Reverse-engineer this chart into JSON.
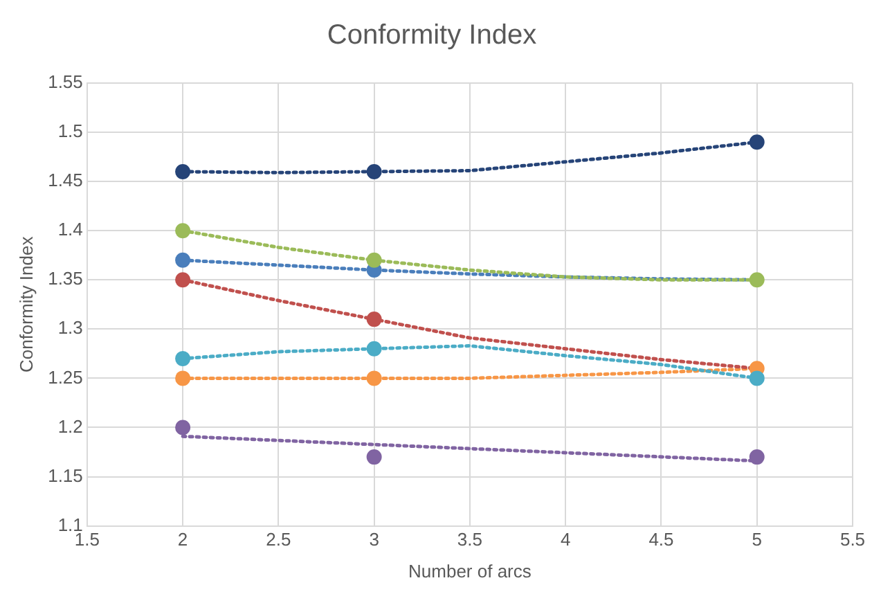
{
  "chart_data": {
    "type": "scatter",
    "title": "Conformity Index",
    "xlabel": "Number of arcs",
    "ylabel": "Conformity Index",
    "xlim": [
      1.5,
      5.5
    ],
    "xticks": [
      1.5,
      2,
      2.5,
      3,
      3.5,
      4,
      4.5,
      5,
      5.5
    ],
    "ylim": [
      1.1,
      1.55
    ],
    "yticks": [
      1.1,
      1.15,
      1.2,
      1.25,
      1.3,
      1.35,
      1.4,
      1.45,
      1.5,
      1.55
    ],
    "grid": true,
    "legend": false,
    "marker": "circle",
    "series": [
      {
        "type": "line",
        "line_style": "dotted",
        "marker": "none",
        "color": "#264478",
        "x": [
          2,
          2.5,
          3,
          3.5,
          4,
          4.5,
          5
        ],
        "values": [
          1.46,
          1.459,
          1.46,
          1.461,
          1.47,
          1.479,
          1.49
        ]
      },
      {
        "type": "line",
        "line_style": "dotted",
        "marker": "none",
        "color": "#9bbb59",
        "x": [
          2,
          2.5,
          3,
          3.5,
          4,
          4.5,
          5
        ],
        "values": [
          1.4,
          1.383,
          1.37,
          1.36,
          1.353,
          1.35,
          1.35
        ]
      },
      {
        "type": "line",
        "line_style": "dotted",
        "marker": "none",
        "color": "#4a7ebb",
        "x": [
          2,
          2.5,
          3,
          3.5,
          4,
          4.5,
          5
        ],
        "values": [
          1.37,
          1.365,
          1.36,
          1.356,
          1.353,
          1.351,
          1.35
        ]
      },
      {
        "type": "line",
        "line_style": "dotted",
        "marker": "none",
        "color": "#c0504d",
        "x": [
          2,
          2.5,
          3,
          3.5,
          4,
          4.5,
          5
        ],
        "values": [
          1.35,
          1.329,
          1.31,
          1.291,
          1.28,
          1.269,
          1.26
        ]
      },
      {
        "type": "line",
        "line_style": "dotted",
        "marker": "none",
        "color": "#4bacc6",
        "x": [
          2,
          2.5,
          3,
          3.5,
          4,
          4.5,
          5
        ],
        "values": [
          1.27,
          1.277,
          1.28,
          1.283,
          1.273,
          1.264,
          1.25
        ]
      },
      {
        "type": "line",
        "line_style": "dotted",
        "marker": "none",
        "color": "#f79646",
        "x": [
          2,
          2.5,
          3,
          3.5,
          4,
          4.5,
          5
        ],
        "values": [
          1.25,
          1.25,
          1.25,
          1.25,
          1.253,
          1.256,
          1.26
        ]
      },
      {
        "type": "line",
        "line_style": "dotted",
        "marker": "none",
        "color": "#8064a2",
        "x": [
          2,
          5
        ],
        "values": [
          1.191,
          1.166
        ]
      },
      {
        "color": "#264478",
        "x": [
          2,
          3,
          5
        ],
        "values": [
          1.46,
          1.46,
          1.49
        ]
      },
      {
        "color": "#9bbb59",
        "x": [
          2,
          3,
          5
        ],
        "values": [
          1.4,
          1.37,
          1.35
        ]
      },
      {
        "color": "#4a7ebb",
        "x": [
          2,
          3
        ],
        "values": [
          1.37,
          1.36
        ]
      },
      {
        "color": "#c0504d",
        "x": [
          2,
          3
        ],
        "values": [
          1.35,
          1.31
        ]
      },
      {
        "color": "#4bacc6",
        "x": [
          2,
          3,
          5
        ],
        "values": [
          1.27,
          1.28,
          1.25
        ]
      },
      {
        "color": "#f79646",
        "x": [
          2,
          3,
          5
        ],
        "values": [
          1.25,
          1.25,
          1.26
        ]
      },
      {
        "color": "#8064a2",
        "x": [
          2,
          3,
          5
        ],
        "values": [
          1.2,
          1.17,
          1.17
        ]
      }
    ]
  }
}
